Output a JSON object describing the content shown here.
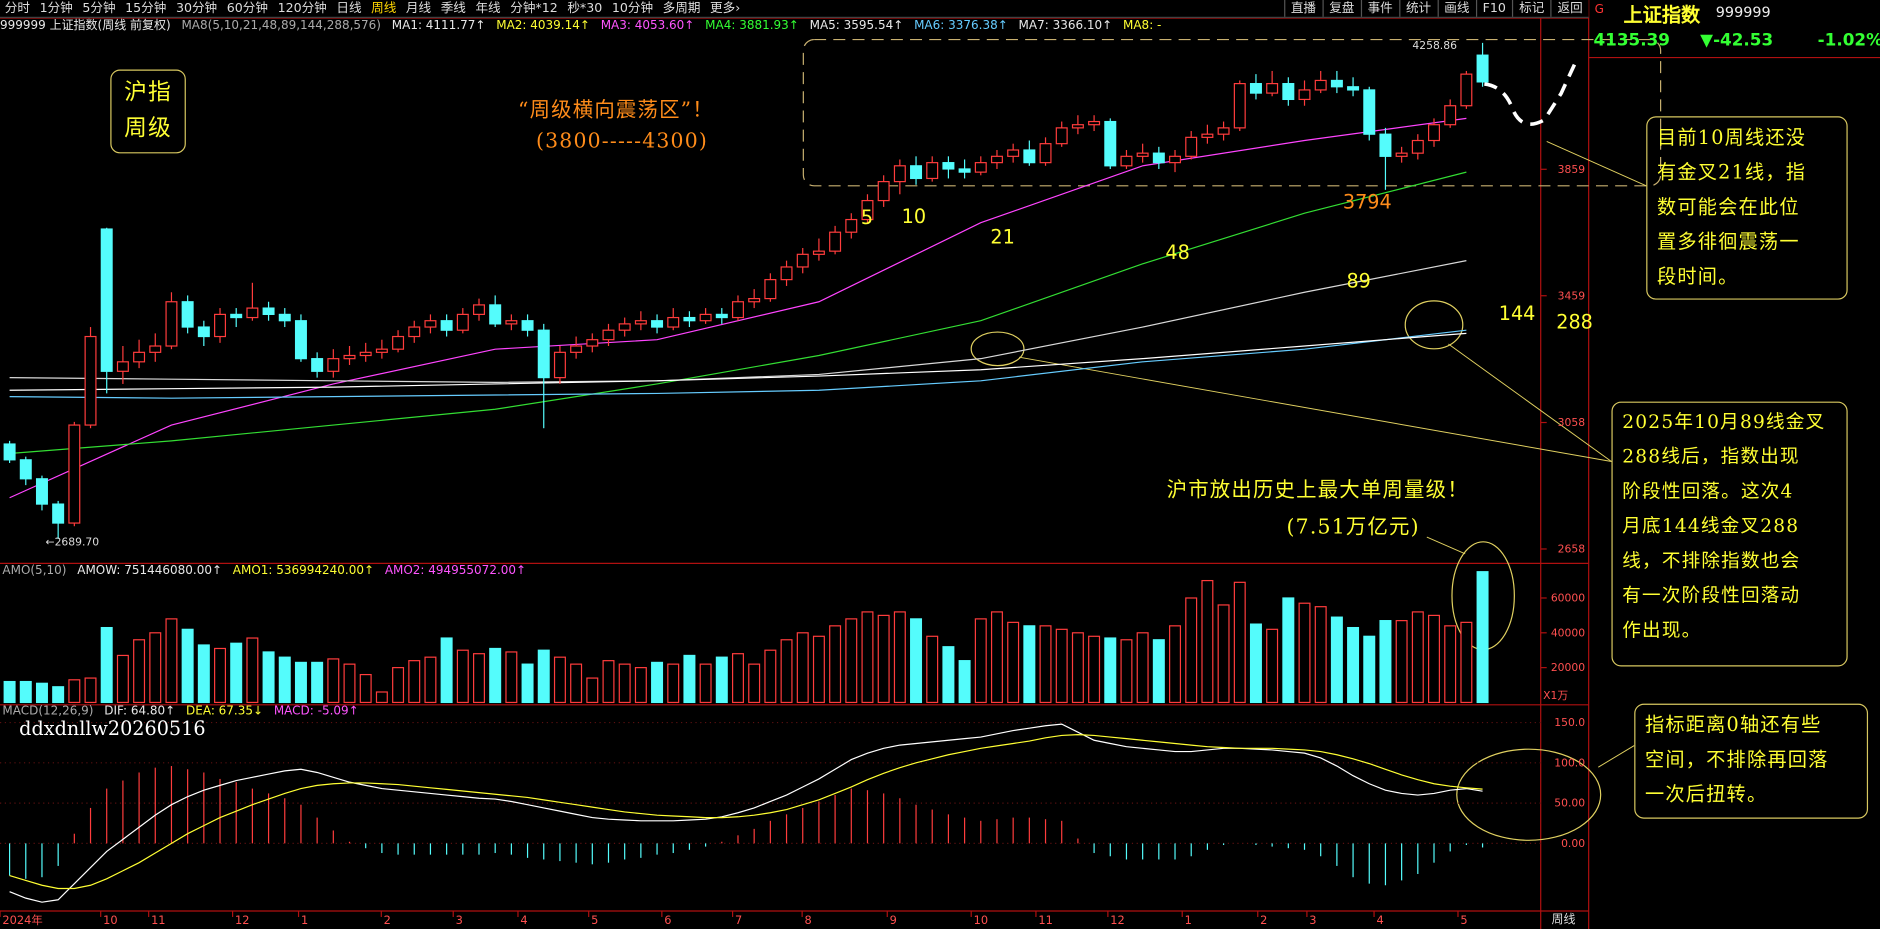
{
  "toolbar": {
    "left": [
      "分时",
      "1分钟",
      "5分钟",
      "15分钟",
      "30分钟",
      "60分钟",
      "120分钟",
      "日线",
      "周线",
      "月线",
      "季线",
      "年线",
      "分钟*12",
      "秒*30",
      "10分钟",
      "多周期",
      "更多›"
    ],
    "right": [
      "直播",
      "复盘",
      "事件",
      "统计",
      "画线",
      "F10",
      "标记",
      "返回"
    ]
  },
  "header": {
    "symbol": "999999 上证指数(周线 前复权)",
    "ma_params": "MA8(5,10,21,48,89,144,288,576)",
    "ma_values": [
      "MA1: 4111.77↑",
      "MA2: 4039.14↑",
      "MA3: 4053.60↑",
      "MA4: 3881.93↑",
      "MA5: 3595.54↑",
      "MA6: 3376.38↑",
      "MA7: 3366.10↑",
      "MA8: -"
    ]
  },
  "right_panel": {
    "flag": "G",
    "name": "上证指数",
    "code": "999999",
    "price": "4135.39",
    "change": "▼-42.53",
    "change_pct": "-1.02%"
  },
  "annotations": {
    "badge": [
      "沪指",
      "周级"
    ],
    "range_title": "“周级横向震荡区”！",
    "range": "(3800-----4300)",
    "ma_labels": [
      "5",
      "10",
      "21",
      "48",
      "89",
      "144",
      "288"
    ],
    "low_mark": "3794",
    "high_price": "4258.86",
    "low_price": "←2689.70",
    "volume_note": [
      "沪市放出历史上最大单周量级！",
      "(7.51万亿元)"
    ],
    "watermark": "ddxdnllw20260516",
    "box1": [
      "目前10周线还没",
      "有金叉21线，指",
      "数可能会在此位",
      "置多徘徊震荡一",
      "段时间。"
    ],
    "box2": [
      "2025年10月89线金叉",
      "288线后，指数出现",
      "阶段性回落。这次4",
      "月底144线金叉288",
      "线，不排除指数也会",
      "有一次阶段性回落动",
      "作出现。"
    ],
    "box3": [
      "指标距离0轴还有些",
      "空间，不排除再回落",
      "一次后扭转。"
    ]
  },
  "x_labels": [
    "2024年",
    "10",
    "11",
    "12",
    "1",
    "2",
    "3",
    "4",
    "5",
    "6",
    "7",
    "8",
    "9",
    "10",
    "11",
    "12",
    "1",
    "2",
    "3",
    "4",
    "5"
  ],
  "period": "周线",
  "chart_data": [
    {
      "type": "candlestick",
      "up_color": "#ff3c3c",
      "down_color": "#54fcfc",
      "open": [
        2990,
        2940,
        2880,
        2800,
        2740,
        3050,
        3670,
        3220,
        3250,
        3280,
        3300,
        3440,
        3360,
        3330,
        3400,
        3390,
        3420,
        3400,
        3380,
        3260,
        3220,
        3260,
        3270,
        3280,
        3290,
        3330,
        3360,
        3380,
        3350,
        3400,
        3430,
        3370,
        3380,
        3350,
        3200,
        3280,
        3300,
        3320,
        3350,
        3370,
        3380,
        3360,
        3390,
        3380,
        3400,
        3390,
        3440,
        3450,
        3510,
        3550,
        3590,
        3600,
        3660,
        3700,
        3760,
        3820,
        3870,
        3830,
        3880,
        3860,
        3850,
        3880,
        3900,
        3920,
        3880,
        3940,
        3990,
        4000,
        4010,
        3870,
        3900,
        3910,
        3880,
        3900,
        3960,
        3970,
        3990,
        4130,
        4100,
        4130,
        4080,
        4110,
        4140,
        4120,
        4110,
        3970,
        3900,
        3910,
        3950,
        4000,
        4060,
        4220
      ],
      "close": [
        2940,
        2880,
        2800,
        2740,
        3050,
        3330,
        3220,
        3250,
        3280,
        3300,
        3440,
        3360,
        3330,
        3400,
        3390,
        3420,
        3400,
        3380,
        3260,
        3220,
        3260,
        3270,
        3280,
        3290,
        3330,
        3360,
        3380,
        3350,
        3400,
        3430,
        3370,
        3380,
        3350,
        3200,
        3280,
        3300,
        3320,
        3350,
        3370,
        3380,
        3360,
        3390,
        3380,
        3400,
        3390,
        3440,
        3450,
        3510,
        3550,
        3590,
        3600,
        3660,
        3700,
        3760,
        3820,
        3870,
        3830,
        3880,
        3860,
        3850,
        3880,
        3900,
        3920,
        3880,
        3940,
        3990,
        4000,
        4010,
        3870,
        3900,
        3910,
        3880,
        3900,
        3960,
        3970,
        3990,
        4130,
        4100,
        4130,
        4080,
        4110,
        4140,
        4120,
        4110,
        3970,
        3900,
        3910,
        3950,
        4000,
        4060,
        4160,
        4135.39
      ],
      "high": [
        3000,
        2950,
        2890,
        2810,
        3060,
        3360,
        3674,
        3300,
        3320,
        3340,
        3470,
        3460,
        3380,
        3420,
        3420,
        3500,
        3440,
        3420,
        3400,
        3280,
        3290,
        3300,
        3310,
        3320,
        3350,
        3380,
        3400,
        3400,
        3420,
        3450,
        3460,
        3400,
        3400,
        3370,
        3300,
        3330,
        3340,
        3370,
        3390,
        3410,
        3400,
        3420,
        3410,
        3420,
        3420,
        3460,
        3480,
        3530,
        3570,
        3610,
        3640,
        3680,
        3720,
        3780,
        3840,
        3890,
        3900,
        3900,
        3900,
        3890,
        3900,
        3920,
        3940,
        3950,
        3960,
        4010,
        4030,
        4030,
        4020,
        3920,
        3940,
        3930,
        3920,
        3980,
        4000,
        4010,
        4140,
        4160,
        4170,
        4150,
        4140,
        4170,
        4170,
        4150,
        4120,
        3990,
        3930,
        3970,
        4020,
        4080,
        4170,
        4258.86
      ],
      "low": [
        2930,
        2860,
        2780,
        2689.7,
        2730,
        3040,
        3150,
        3180,
        3230,
        3250,
        3290,
        3340,
        3300,
        3310,
        3360,
        3380,
        3380,
        3360,
        3250,
        3200,
        3200,
        3240,
        3250,
        3260,
        3280,
        3310,
        3340,
        3330,
        3340,
        3380,
        3360,
        3350,
        3330,
        3040,
        3180,
        3260,
        3280,
        3300,
        3330,
        3350,
        3340,
        3350,
        3360,
        3370,
        3370,
        3380,
        3420,
        3440,
        3490,
        3530,
        3570,
        3590,
        3640,
        3690,
        3740,
        3780,
        3810,
        3820,
        3830,
        3830,
        3840,
        3860,
        3880,
        3870,
        3870,
        3930,
        3970,
        3980,
        3860,
        3860,
        3880,
        3860,
        3850,
        3890,
        3940,
        3950,
        3980,
        4080,
        4090,
        4060,
        4060,
        4100,
        4100,
        4090,
        3950,
        3794,
        3880,
        3890,
        3930,
        3990,
        4050,
        4120
      ],
      "ma_lines": [
        {
          "color": "#ff44ff",
          "x": [
            0,
            10,
            20,
            30,
            40,
            50,
            60,
            70,
            80,
            90
          ],
          "values": [
            2820,
            3050,
            3180,
            3290,
            3320,
            3440,
            3690,
            3870,
            3950,
            4020
          ]
        },
        {
          "color": "#33dd33",
          "x": [
            0,
            10,
            20,
            30,
            40,
            50,
            60,
            70,
            80,
            90
          ],
          "values": [
            2960,
            3000,
            3050,
            3100,
            3180,
            3270,
            3380,
            3560,
            3720,
            3850
          ]
        },
        {
          "color": "#d8d8d8",
          "x": [
            0,
            10,
            20,
            30,
            40,
            50,
            60,
            70,
            80,
            90
          ],
          "values": [
            3200,
            3195,
            3190,
            3185,
            3190,
            3210,
            3260,
            3360,
            3470,
            3570
          ]
        },
        {
          "color": "#66ccff",
          "x": [
            0,
            10,
            20,
            30,
            40,
            50,
            60,
            70,
            80,
            90
          ],
          "values": [
            3140,
            3135,
            3140,
            3145,
            3150,
            3160,
            3190,
            3250,
            3290,
            3350
          ]
        },
        {
          "color": "#ffffff",
          "x": [
            0,
            10,
            20,
            30,
            40,
            50,
            60,
            70,
            80,
            90
          ],
          "values": [
            3160,
            3165,
            3170,
            3180,
            3190,
            3205,
            3225,
            3260,
            3300,
            3340
          ]
        }
      ],
      "ylim": [
        2620,
        4330
      ],
      "yticks": [
        2658,
        3058,
        3459,
        3859
      ]
    },
    {
      "type": "bar",
      "header": [
        "AMO(5,10)",
        "AMOW: 751446080.00↑",
        "AMO1: 536994240.00↑",
        "AMO2: 494955072.00↑"
      ],
      "values": [
        12000,
        12000,
        11000,
        9000,
        13000,
        14000,
        43000,
        27000,
        36000,
        40000,
        48000,
        42000,
        33000,
        31000,
        34000,
        37000,
        29000,
        26000,
        23000,
        23000,
        25000,
        22000,
        16000,
        6000,
        20000,
        24000,
        26000,
        37000,
        30000,
        28000,
        31000,
        29000,
        22000,
        30000,
        26000,
        22000,
        14000,
        24000,
        22000,
        20000,
        23000,
        22000,
        27000,
        22000,
        26000,
        28000,
        22000,
        30000,
        36000,
        40000,
        38000,
        44000,
        48000,
        52000,
        50000,
        52000,
        48000,
        38000,
        32000,
        24000,
        48000,
        52000,
        46000,
        44000,
        44000,
        42000,
        40000,
        38000,
        37000,
        36000,
        40000,
        36000,
        44000,
        60000,
        70000,
        56000,
        69000,
        45000,
        42000,
        60000,
        57000,
        55000,
        49000,
        43000,
        38000,
        47000,
        47000,
        52000,
        50000,
        44000,
        46000,
        75100
      ],
      "ylim": [
        0,
        78500
      ],
      "yticks": [
        20000,
        40000,
        60000
      ],
      "unit": "X1万"
    },
    {
      "type": "macd",
      "header": [
        "MACD(12,26,9)",
        "DIF: 64.80↑",
        "DEA: 67.35↓",
        "MACD: -5.09↑"
      ],
      "dif": {
        "color": "#ffffff",
        "values": [
          -60,
          -68,
          -73,
          -70,
          -50,
          -30,
          -10,
          5,
          20,
          35,
          48,
          58,
          66,
          72,
          78,
          82,
          86,
          90,
          92,
          88,
          82,
          76,
          72,
          68,
          66,
          64,
          62,
          60,
          58,
          56,
          55,
          52,
          48,
          44,
          40,
          36,
          32,
          30,
          29,
          28,
          28,
          28,
          29,
          30,
          33,
          38,
          44,
          52,
          60,
          70,
          80,
          92,
          104,
          112,
          118,
          122,
          124,
          126,
          128,
          130,
          132,
          136,
          140,
          143,
          146,
          148,
          138,
          128,
          124,
          120,
          118,
          116,
          114,
          114,
          116,
          118,
          118,
          117,
          116,
          114,
          112,
          106,
          96,
          84,
          74,
          66,
          62,
          60,
          62,
          66,
          68,
          64.8
        ]
      },
      "dea": {
        "color": "#ffff33",
        "values": [
          -40,
          -46,
          -52,
          -56,
          -56,
          -52,
          -44,
          -34,
          -24,
          -12,
          0,
          12,
          22,
          32,
          40,
          48,
          55,
          62,
          68,
          72,
          74,
          75,
          75,
          74,
          73,
          71,
          69,
          67,
          65,
          63,
          61,
          59,
          57,
          54,
          51,
          48,
          45,
          42,
          39,
          37,
          35,
          34,
          33,
          32,
          32,
          33,
          35,
          38,
          42,
          48,
          54,
          62,
          70,
          79,
          87,
          94,
          100,
          105,
          110,
          114,
          118,
          121,
          124,
          127,
          131,
          134,
          135,
          134,
          132,
          130,
          128,
          126,
          124,
          122,
          120,
          119,
          118,
          118,
          118,
          117,
          116,
          114,
          110,
          105,
          99,
          92,
          85,
          79,
          74,
          71,
          69,
          67.35
        ]
      },
      "hist": [
        -40,
        -44,
        -42,
        -28,
        12,
        44,
        68,
        78,
        88,
        94,
        96,
        92,
        88,
        80,
        76,
        68,
        62,
        56,
        48,
        32,
        16,
        2,
        -6,
        -12,
        -14,
        -14,
        -14,
        -14,
        -14,
        -14,
        -12,
        -14,
        -18,
        -20,
        -22,
        -24,
        -26,
        -24,
        -20,
        -18,
        -14,
        -12,
        -8,
        -4,
        2,
        10,
        18,
        28,
        36,
        44,
        52,
        60,
        68,
        66,
        62,
        56,
        48,
        42,
        36,
        32,
        28,
        30,
        32,
        32,
        30,
        28,
        6,
        -12,
        -16,
        -20,
        -20,
        -20,
        -20,
        -16,
        -8,
        -2,
        0,
        -2,
        -4,
        -6,
        -8,
        -16,
        -28,
        -42,
        -50,
        -52,
        -46,
        -38,
        -24,
        -10,
        -2,
        -5.09
      ],
      "ylim": [
        -81,
        169
      ],
      "yticks": [
        {
          "value": 0,
          "label": "0.00"
        },
        {
          "value": 50,
          "label": "50.00"
        },
        {
          "value": 100,
          "label": "100.0"
        },
        {
          "value": 150,
          "label": "150.0"
        }
      ]
    }
  ]
}
